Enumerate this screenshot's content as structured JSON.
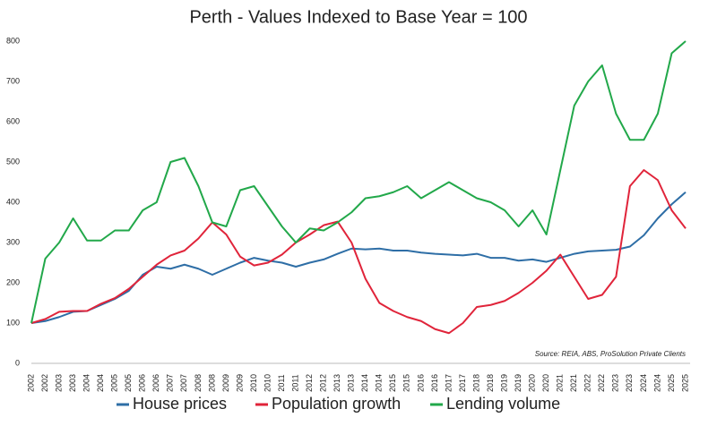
{
  "chart_data": {
    "type": "line",
    "title": "Perth - Values Indexed to Base Year = 100",
    "annotation": "Source: REIA, ABS, ProSolution Private Clients",
    "categories": [
      "2002",
      "2002",
      "2003",
      "2003",
      "2004",
      "2004",
      "2005",
      "2005",
      "2006",
      "2006",
      "2007",
      "2007",
      "2008",
      "2008",
      "2009",
      "2009",
      "2010",
      "2010",
      "2011",
      "2011",
      "2012",
      "2012",
      "2013",
      "2013",
      "2014",
      "2014",
      "2015",
      "2015",
      "2016",
      "2016",
      "2017",
      "2017",
      "2018",
      "2018",
      "2019",
      "2019",
      "2020",
      "2020",
      "2021",
      "2021",
      "2022",
      "2022",
      "2023",
      "2023",
      "2024",
      "2024",
      "2025",
      "2025"
    ],
    "series": [
      {
        "name": "House prices",
        "color": "#2e6ea6",
        "values": [
          100,
          105,
          115,
          128,
          130,
          145,
          160,
          180,
          220,
          240,
          235,
          245,
          235,
          220,
          235,
          250,
          262,
          255,
          250,
          240,
          250,
          258,
          272,
          285,
          283,
          285,
          280,
          280,
          275,
          272,
          270,
          268,
          272,
          262,
          262,
          255,
          258,
          252,
          262,
          272,
          278,
          280,
          282,
          290,
          318,
          360,
          395,
          425
        ]
      },
      {
        "name": "Population growth",
        "color": "#e0243a",
        "values": [
          100,
          110,
          128,
          130,
          130,
          148,
          162,
          185,
          215,
          245,
          268,
          280,
          310,
          350,
          320,
          265,
          243,
          250,
          270,
          300,
          320,
          343,
          352,
          300,
          210,
          150,
          130,
          115,
          105,
          85,
          75,
          100,
          140,
          145,
          155,
          175,
          200,
          230,
          270,
          215,
          160,
          170,
          215,
          440,
          480,
          455,
          380,
          335
        ]
      },
      {
        "name": "Lending volume",
        "color": "#22a84a",
        "values": [
          100,
          260,
          300,
          360,
          305,
          305,
          330,
          330,
          380,
          400,
          500,
          510,
          440,
          350,
          340,
          430,
          440,
          390,
          340,
          300,
          335,
          330,
          350,
          375,
          410,
          415,
          425,
          440,
          410,
          430,
          450,
          430,
          410,
          400,
          380,
          340,
          380,
          320,
          480,
          640,
          700,
          740,
          620,
          555,
          555,
          620,
          770,
          800
        ]
      }
    ],
    "ylim": [
      0,
      800
    ],
    "yticks": [
      0,
      100,
      200,
      300,
      400,
      500,
      600,
      700,
      800
    ],
    "grid": false
  }
}
